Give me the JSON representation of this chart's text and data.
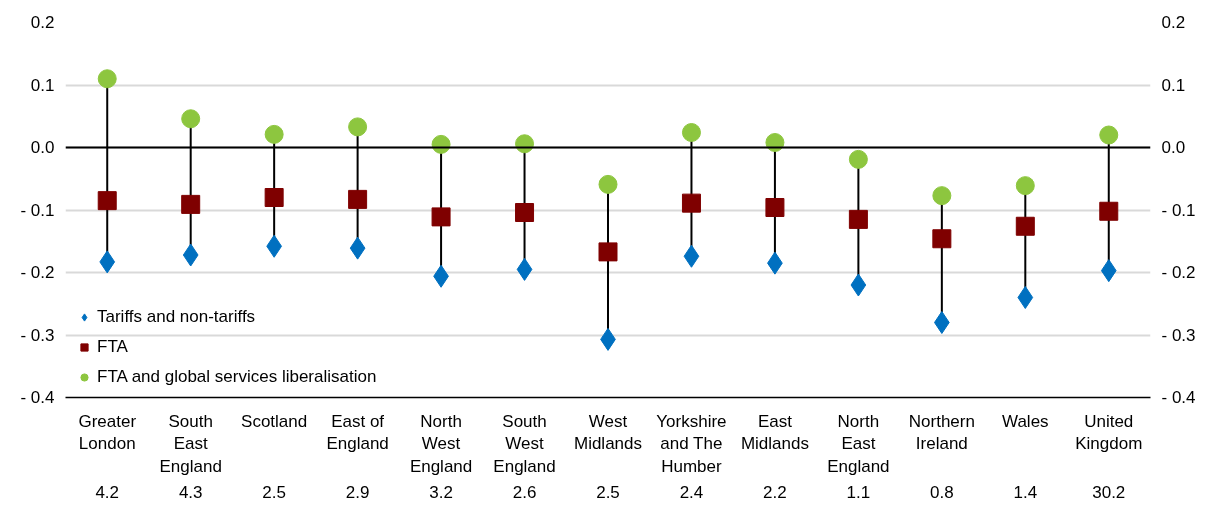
{
  "chart_data": {
    "type": "scatter",
    "categories": [
      "Greater London",
      "South East England",
      "Scotland",
      "East of England",
      "North West England",
      "South West England",
      "West Midlands",
      "Yorkshire and The Humber",
      "East Midlands",
      "North East England",
      "Northern Ireland",
      "Wales",
      "United Kingdom"
    ],
    "series": [
      {
        "name": "Tariffs and non-tariffs",
        "color": "#0070c0",
        "marker": "diamond",
        "values": [
          -0.183,
          -0.172,
          -0.158,
          -0.161,
          -0.206,
          -0.195,
          -0.307,
          -0.174,
          -0.185,
          -0.22,
          -0.28,
          -0.24,
          -0.197
        ]
      },
      {
        "name": "FTA",
        "color": "#7f0000",
        "marker": "square",
        "values": [
          -0.085,
          -0.091,
          -0.08,
          -0.083,
          -0.111,
          -0.104,
          -0.167,
          -0.089,
          -0.096,
          -0.115,
          -0.146,
          -0.126,
          -0.102
        ]
      },
      {
        "name": "FTA and global services liberalisation",
        "color": "#8dc63f",
        "marker": "circle",
        "values": [
          0.11,
          0.046,
          0.021,
          0.033,
          0.005,
          0.006,
          -0.059,
          0.024,
          0.008,
          -0.019,
          -0.077,
          -0.061,
          0.02
        ]
      }
    ],
    "ylim": [
      -0.4,
      0.2
    ],
    "yticks": [
      {
        "value": -0.4,
        "label": "- 0.4"
      },
      {
        "value": -0.3,
        "label": "- 0.3"
      },
      {
        "value": -0.2,
        "label": "- 0.2"
      },
      {
        "value": -0.1,
        "label": "- 0.1"
      },
      {
        "value": 0,
        "label": "0.0"
      },
      0.1,
      0.2
    ],
    "y2lim": [
      -0.4,
      0.2
    ],
    "y2ticks": [
      {
        "value": -0.4,
        "label": "- 0.4"
      },
      {
        "value": -0.3,
        "label": "- 0.3"
      },
      {
        "value": -0.2,
        "label": "- 0.2"
      },
      {
        "value": -0.1,
        "label": "- 0.1"
      },
      {
        "value": 0,
        "label": "0.0"
      },
      0.1,
      0.2
    ],
    "annotations": [
      "4.2",
      "4.3",
      "2.5",
      "2.9",
      "3.2",
      "2.6",
      "2.5",
      "2.4",
      "2.2",
      "1.1",
      "0.8",
      "1.4",
      "30.2"
    ],
    "grid": "y",
    "legend": "bottom left"
  }
}
